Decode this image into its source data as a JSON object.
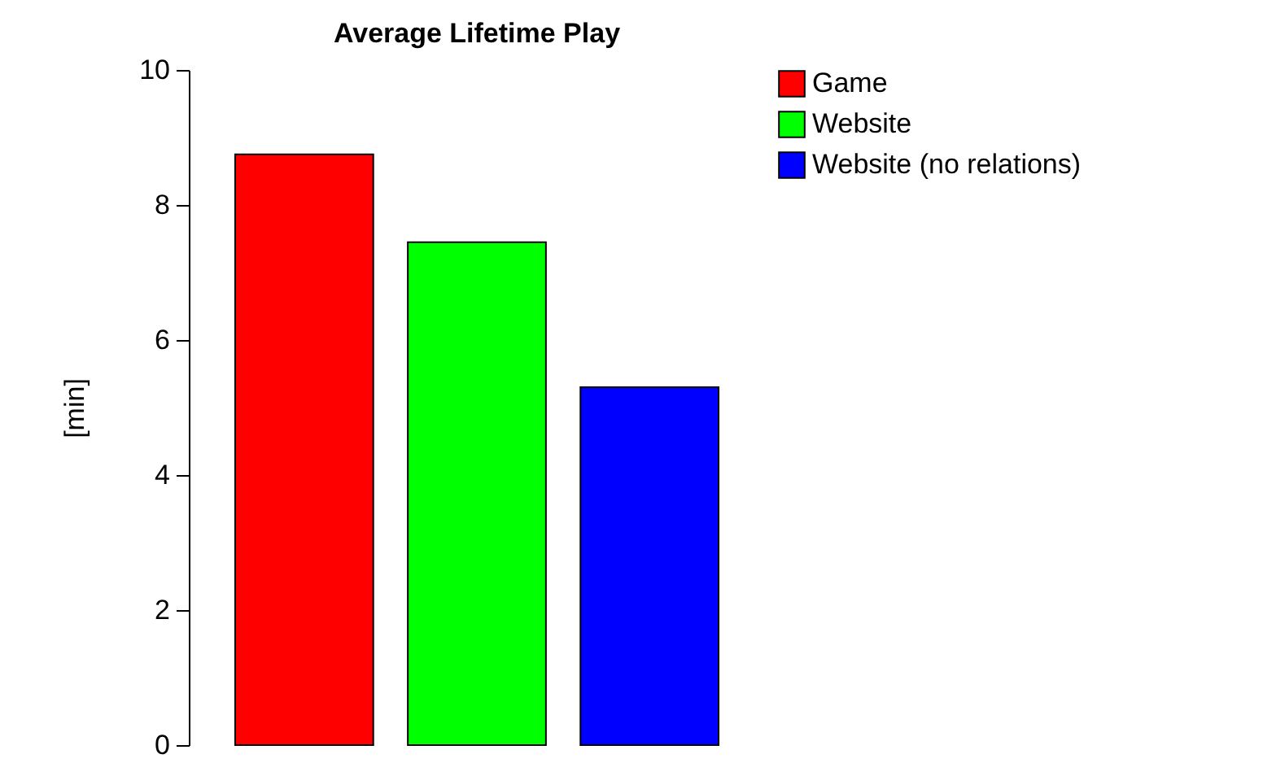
{
  "chart_data": {
    "type": "bar",
    "title": "Average Lifetime Play",
    "ylabel": "[min]",
    "categories": [
      null
    ],
    "series": [
      {
        "name": "Game",
        "color": "#ff0000",
        "values": [
          8.75
        ]
      },
      {
        "name": "Website",
        "color": "#00ff00",
        "values": [
          7.45
        ]
      },
      {
        "name": "Website (no relations)",
        "color": "#0000ff",
        "values": [
          5.3
        ]
      }
    ],
    "ylim": [
      0,
      10
    ],
    "yticks": [
      0,
      2,
      4,
      6,
      8,
      10
    ],
    "grid": false,
    "legend": "right",
    "tick_labels": "y"
  }
}
